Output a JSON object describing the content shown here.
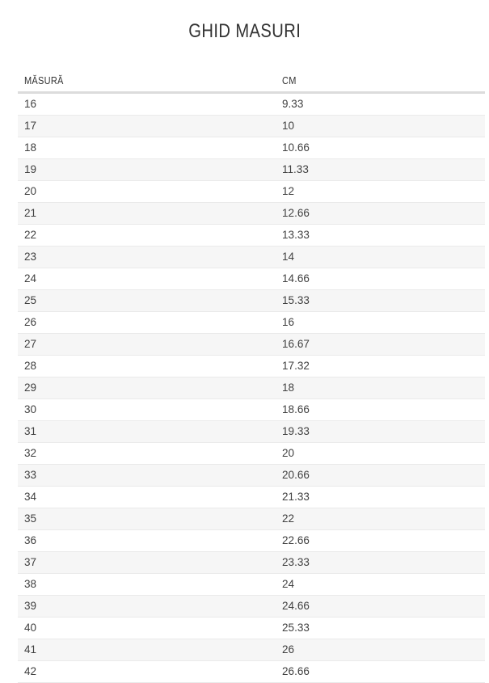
{
  "page": {
    "title": "GHID MASURI"
  },
  "table": {
    "columns": [
      {
        "key": "size",
        "label": "MĂSURĂ"
      },
      {
        "key": "cm",
        "label": "CM"
      }
    ],
    "rows": [
      {
        "size": "16",
        "cm": "9.33"
      },
      {
        "size": "17",
        "cm": "10"
      },
      {
        "size": "18",
        "cm": "10.66"
      },
      {
        "size": "19",
        "cm": "11.33"
      },
      {
        "size": "20",
        "cm": "12"
      },
      {
        "size": "21",
        "cm": "12.66"
      },
      {
        "size": "22",
        "cm": "13.33"
      },
      {
        "size": "23",
        "cm": "14"
      },
      {
        "size": "24",
        "cm": "14.66"
      },
      {
        "size": "25",
        "cm": "15.33"
      },
      {
        "size": "26",
        "cm": "16"
      },
      {
        "size": "27",
        "cm": "16.67"
      },
      {
        "size": "28",
        "cm": "17.32"
      },
      {
        "size": "29",
        "cm": "18"
      },
      {
        "size": "30",
        "cm": "18.66"
      },
      {
        "size": "31",
        "cm": "19.33"
      },
      {
        "size": "32",
        "cm": "20"
      },
      {
        "size": "33",
        "cm": "20.66"
      },
      {
        "size": "34",
        "cm": "21.33"
      },
      {
        "size": "35",
        "cm": "22"
      },
      {
        "size": "36",
        "cm": "22.66"
      },
      {
        "size": "37",
        "cm": "23.33"
      },
      {
        "size": "38",
        "cm": "24"
      },
      {
        "size": "39",
        "cm": "24.66"
      },
      {
        "size": "40",
        "cm": "25.33"
      },
      {
        "size": "41",
        "cm": "26"
      },
      {
        "size": "42",
        "cm": "26.66"
      }
    ]
  },
  "colors": {
    "background": "#ffffff",
    "title_text": "#333333",
    "header_text": "#333333",
    "cell_text": "#404040",
    "row_stripe": "#f6f6f6",
    "row_border": "#eaeaea",
    "header_border": "#dcdcdc"
  }
}
